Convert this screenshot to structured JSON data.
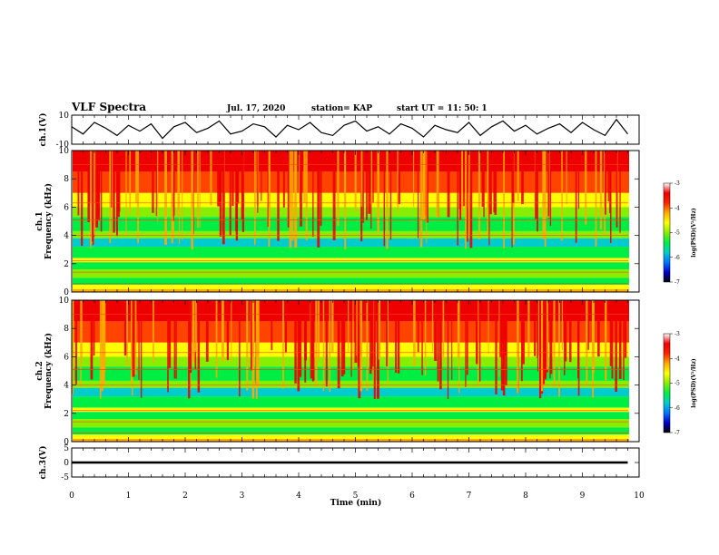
{
  "header": {
    "title": "VLF Spectra",
    "date": "Jul. 17, 2020",
    "station": "station= KAP",
    "start_ut": "start UT = 11: 50: 1"
  },
  "chart_data": [
    {
      "type": "line",
      "title": "",
      "ylabel": "ch.1(V)",
      "ylim": [
        -10,
        10
      ],
      "yticks": [
        "10",
        "-10"
      ],
      "xlim": [
        0,
        10
      ],
      "x": [
        0,
        0.2,
        0.4,
        0.6,
        0.8,
        1,
        1.2,
        1.4,
        1.6,
        1.8,
        2,
        2.2,
        2.4,
        2.6,
        2.8,
        3,
        3.2,
        3.4,
        3.6,
        3.8,
        4,
        4.2,
        4.4,
        4.6,
        4.8,
        5,
        5.2,
        5.4,
        5.6,
        5.8,
        6,
        6.2,
        6.4,
        6.6,
        6.8,
        7,
        7.2,
        7.4,
        7.6,
        7.8,
        8,
        8.2,
        8.4,
        8.6,
        8.8,
        9,
        9.2,
        9.4,
        9.6,
        9.8
      ],
      "y": [
        2,
        -3,
        5,
        1,
        -4,
        3,
        -1,
        4,
        -6,
        2,
        5,
        -2,
        1,
        6,
        -3,
        -1,
        4,
        2,
        -5,
        3,
        0,
        5,
        -2,
        -4,
        3,
        6,
        -1,
        2,
        -3,
        4,
        1,
        -5,
        3,
        0,
        -2,
        5,
        -4,
        2,
        6,
        -1,
        3,
        -3,
        1,
        4,
        -2,
        5,
        0,
        -4,
        7,
        -3
      ],
      "grid": false
    },
    {
      "type": "heatmap",
      "title": "",
      "ylabel": "ch.1 Frequency (kHz)",
      "ylim": [
        0,
        10
      ],
      "yticks": [
        "0",
        "2",
        "4",
        "6",
        "8",
        "10"
      ],
      "xlim": [
        0,
        10
      ],
      "colorbar": {
        "label": "log(PSD)(V²/Hz)",
        "range": [
          -7,
          -3
        ],
        "ticks": [
          "-3",
          "-4",
          "-5",
          "-6",
          "-7"
        ]
      }
    },
    {
      "type": "heatmap",
      "title": "",
      "ylabel": "ch.2 Frequency (kHz)",
      "ylim": [
        0,
        10
      ],
      "yticks": [
        "0",
        "2",
        "4",
        "6",
        "8",
        "10"
      ],
      "xlim": [
        0,
        10
      ],
      "colorbar": {
        "label": "log(PSD)(V²/Hz)",
        "range": [
          -7,
          -3
        ],
        "ticks": [
          "-3",
          "-4",
          "-5",
          "-6",
          "-7"
        ]
      }
    },
    {
      "type": "line",
      "title": "",
      "ylabel": "ch.3(V)",
      "ylim": [
        -5,
        5
      ],
      "yticks": [
        "5",
        "0",
        "-5"
      ],
      "xlim": [
        0,
        10
      ],
      "xlabel": "Time (min)",
      "xticks": [
        "0",
        "1",
        "2",
        "3",
        "4",
        "5",
        "6",
        "7",
        "8",
        "9",
        "10"
      ],
      "value_range": [
        -0.4,
        0.4
      ],
      "x_end": 9.8
    }
  ],
  "colors": {
    "trace": "#000000",
    "colorscale": [
      "#0000cc",
      "#0077ff",
      "#00cccc",
      "#00ee44",
      "#88ee00",
      "#ffff00",
      "#ffaa00",
      "#ff4400",
      "#ee0000"
    ]
  }
}
